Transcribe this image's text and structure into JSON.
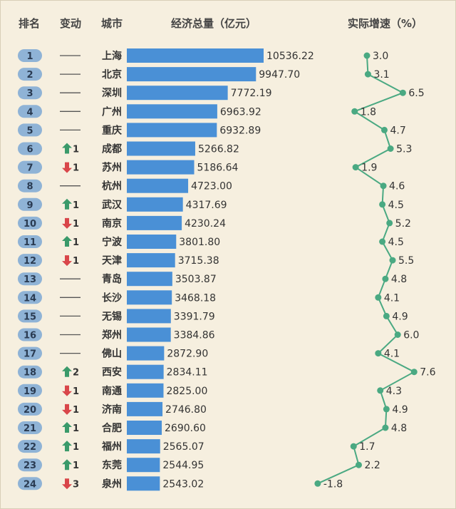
{
  "headers": {
    "rank": "排名",
    "change": "变动",
    "city": "城市",
    "gdp": "经济总量（亿元）",
    "growth": "实际增速（%）"
  },
  "colors": {
    "background": "#f6efdf",
    "rank_badge": "#8fb3d6",
    "bar": "#4a90d6",
    "up_arrow": "#3a9a6a",
    "down_arrow": "#d9464a",
    "growth_line": "#4aa982"
  },
  "chart_data": [
    {
      "type": "bar",
      "orientation": "horizontal",
      "title": "经济总量（亿元）",
      "categories": [
        "上海",
        "北京",
        "深圳",
        "广州",
        "重庆",
        "成都",
        "苏州",
        "杭州",
        "武汉",
        "南京",
        "宁波",
        "天津",
        "青岛",
        "长沙",
        "无锡",
        "郑州",
        "佛山",
        "西安",
        "南通",
        "济南",
        "合肥",
        "福州",
        "东莞",
        "泉州"
      ],
      "values": [
        10536.22,
        9947.7,
        7772.19,
        6963.92,
        6932.89,
        5266.82,
        5186.64,
        4723.0,
        4317.69,
        4230.24,
        3801.8,
        3715.38,
        3503.87,
        3468.18,
        3391.79,
        3384.86,
        2872.9,
        2834.11,
        2825.0,
        2746.8,
        2690.6,
        2565.07,
        2544.95,
        2543.02
      ],
      "value_labels": [
        "10536.22",
        "9947.70",
        "7772.19",
        "6963.92",
        "6932.89",
        "5266.82",
        "5186.64",
        "4723.00",
        "4317.69",
        "4230.24",
        "3801.80",
        "3715.38",
        "3503.87",
        "3468.18",
        "3391.79",
        "3384.86",
        "2872.90",
        "2834.11",
        "2825.00",
        "2746.80",
        "2690.60",
        "2565.07",
        "2544.95",
        "2543.02"
      ],
      "ranks": [
        "1",
        "2",
        "3",
        "4",
        "5",
        "6",
        "7",
        "8",
        "9",
        "10",
        "11",
        "12",
        "13",
        "14",
        "15",
        "16",
        "17",
        "18",
        "19",
        "20",
        "21",
        "22",
        "23",
        "24"
      ],
      "rank_changes": [
        {
          "dir": "none",
          "n": ""
        },
        {
          "dir": "none",
          "n": ""
        },
        {
          "dir": "none",
          "n": ""
        },
        {
          "dir": "none",
          "n": ""
        },
        {
          "dir": "none",
          "n": ""
        },
        {
          "dir": "up",
          "n": "1"
        },
        {
          "dir": "down",
          "n": "1"
        },
        {
          "dir": "none",
          "n": ""
        },
        {
          "dir": "up",
          "n": "1"
        },
        {
          "dir": "down",
          "n": "1"
        },
        {
          "dir": "up",
          "n": "1"
        },
        {
          "dir": "down",
          "n": "1"
        },
        {
          "dir": "none",
          "n": ""
        },
        {
          "dir": "none",
          "n": ""
        },
        {
          "dir": "none",
          "n": ""
        },
        {
          "dir": "none",
          "n": ""
        },
        {
          "dir": "none",
          "n": ""
        },
        {
          "dir": "up",
          "n": "2"
        },
        {
          "dir": "down",
          "n": "1"
        },
        {
          "dir": "down",
          "n": "1"
        },
        {
          "dir": "up",
          "n": "1"
        },
        {
          "dir": "up",
          "n": "1"
        },
        {
          "dir": "up",
          "n": "1"
        },
        {
          "dir": "down",
          "n": "3"
        }
      ]
    },
    {
      "type": "line",
      "orientation": "vertical",
      "title": "实际增速（%）",
      "categories": [
        "上海",
        "北京",
        "深圳",
        "广州",
        "重庆",
        "成都",
        "苏州",
        "杭州",
        "武汉",
        "南京",
        "宁波",
        "天津",
        "青岛",
        "长沙",
        "无锡",
        "郑州",
        "佛山",
        "西安",
        "南通",
        "济南",
        "合肥",
        "福州",
        "东莞",
        "泉州"
      ],
      "values": [
        3.0,
        3.1,
        6.5,
        1.8,
        4.7,
        5.3,
        1.9,
        4.6,
        4.5,
        5.2,
        4.5,
        5.5,
        4.8,
        4.1,
        4.9,
        6.0,
        4.1,
        7.6,
        4.3,
        4.9,
        4.8,
        1.7,
        2.2,
        -1.8
      ],
      "value_labels": [
        "3.0",
        "3.1",
        "6.5",
        "1.8",
        "4.7",
        "5.3",
        "1.9",
        "4.6",
        "4.5",
        "5.2",
        "4.5",
        "5.5",
        "4.8",
        "4.1",
        "4.9",
        "6.0",
        "4.1",
        "7.6",
        "4.3",
        "4.9",
        "4.8",
        "1.7",
        "2.2",
        "-1.8"
      ]
    }
  ]
}
